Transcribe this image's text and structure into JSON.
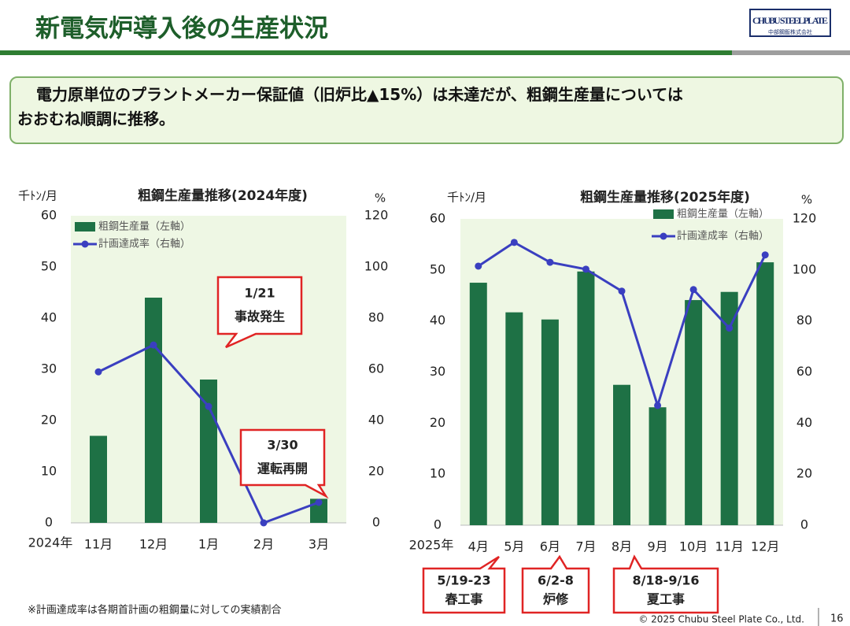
{
  "header": {
    "title": "新電気炉導入後の生産状況",
    "logo": "CHUBU STEEL PLATE",
    "logo_sub": "中部鋼鈑株式会社"
  },
  "message": [
    "電力原単位のプラントメーカー保証値（旧炉比▲15%）は未達だが、粗鋼生産量については",
    "おおむね順調に推移。"
  ],
  "chart_data": [
    {
      "type": "bar",
      "title": "粗鋼生産量推移(2024年度)",
      "y_unit": "千ﾄﾝ/月",
      "y2_unit": "%",
      "year_label": "2024年",
      "categories": [
        "11月",
        "12月",
        "1月",
        "2月",
        "3月"
      ],
      "series": [
        {
          "name": "粗鋼生産量（左軸）",
          "type": "bar",
          "color": "#1e7145",
          "values": [
            17,
            44,
            28,
            0,
            4.7
          ]
        },
        {
          "name": "計画達成率（右軸）",
          "type": "line",
          "axis": "y2",
          "color": "#3a3fc0",
          "values": [
            59,
            69.5,
            45.5,
            0,
            8
          ]
        }
      ],
      "ylim": [
        0,
        60
      ],
      "yticks": [
        0,
        10,
        20,
        30,
        40,
        50,
        60
      ],
      "y2lim": [
        0,
        120
      ],
      "y2ticks": [
        0,
        20,
        40,
        60,
        80,
        100,
        120
      ],
      "annotations": [
        [
          "1/21",
          "事故発生"
        ],
        [
          "3/30",
          "運転再開"
        ]
      ]
    },
    {
      "type": "bar",
      "title": "粗鋼生産量推移(2025年度)",
      "y_unit": "千ﾄﾝ/月",
      "y2_unit": "%",
      "year_label": "2025年",
      "categories": [
        "4月",
        "5月",
        "6月",
        "7月",
        "8月",
        "9月",
        "10月",
        "11月",
        "12月"
      ],
      "series": [
        {
          "name": "粗鋼生産量（左軸）",
          "type": "bar",
          "color": "#1e7145",
          "values": [
            47.5,
            41.7,
            40.3,
            49.7,
            27.5,
            23.1,
            44.1,
            45.7,
            51.5
          ]
        },
        {
          "name": "計画達成率（右軸）",
          "type": "line",
          "axis": "y2",
          "color": "#3a3fc0",
          "values": [
            101.5,
            110.8,
            103,
            100.3,
            91.7,
            46.9,
            92.3,
            77.2,
            105.9
          ]
        }
      ],
      "ylim": [
        0,
        60
      ],
      "yticks": [
        0,
        10,
        20,
        30,
        40,
        50,
        60
      ],
      "y2lim": [
        0,
        120
      ],
      "y2ticks": [
        0,
        20,
        40,
        60,
        80,
        100,
        120
      ],
      "annotations": [
        [
          "5/19-23",
          "春工事"
        ],
        [
          "6/2-8",
          "炉修"
        ],
        [
          "8/18-9/16",
          "夏工事"
        ]
      ]
    }
  ],
  "footnote": "※計画達成率は各期首計画の粗鋼量に対しての実績割合",
  "copyright": "© 2025 Chubu Steel Plate Co., Ltd.",
  "page_number": "16"
}
